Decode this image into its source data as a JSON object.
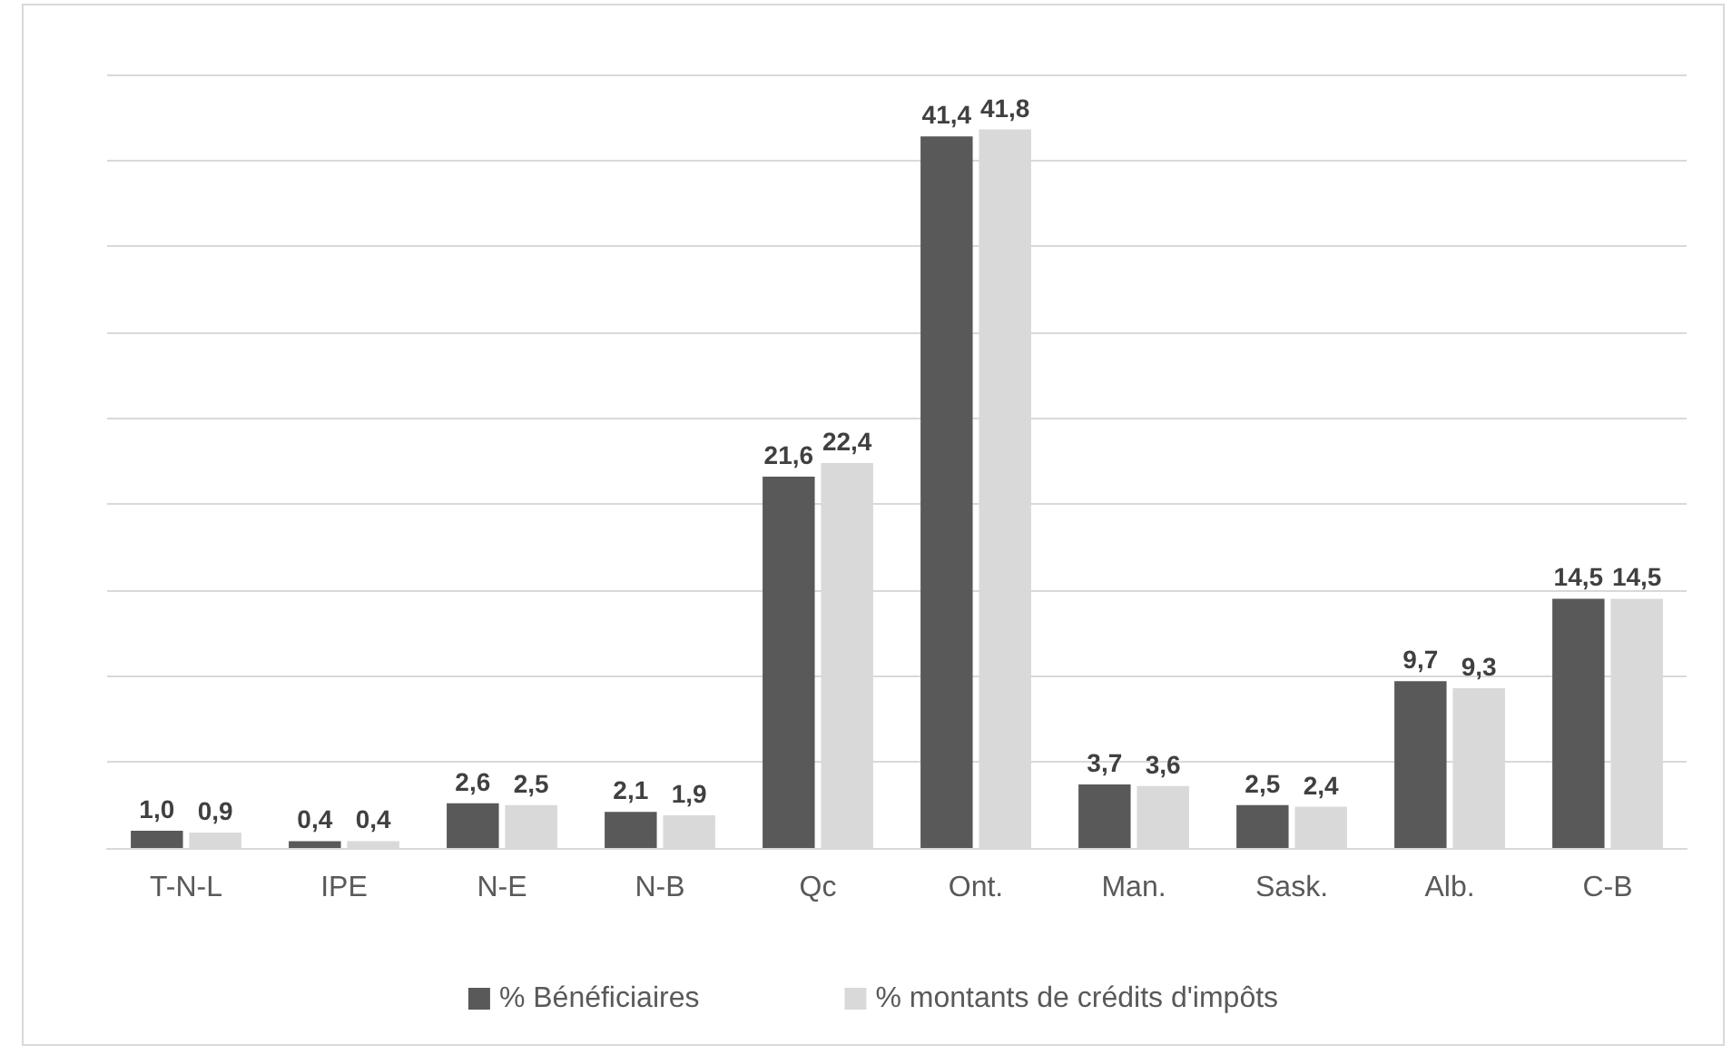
{
  "chart_data": {
    "type": "bar",
    "categories": [
      "T-N-L",
      "IPE",
      "N-E",
      "N-B",
      "Qc",
      "Ont.",
      "Man.",
      "Sask.",
      "Alb.",
      "C-B"
    ],
    "series": [
      {
        "name": "% Bénéficiaires",
        "color": "#595959",
        "values": [
          1.0,
          0.4,
          2.6,
          2.1,
          21.6,
          41.4,
          3.7,
          2.5,
          9.7,
          14.5
        ],
        "value_labels": [
          "1,0",
          "0,4",
          "2,6",
          "2,1",
          "21,6",
          "41,4",
          "3,7",
          "2,5",
          "9,7",
          "14,5"
        ]
      },
      {
        "name": "% montants de crédits d'impôts",
        "color": "#d9d9d9",
        "values": [
          0.9,
          0.4,
          2.5,
          1.9,
          22.4,
          41.8,
          3.6,
          2.4,
          9.3,
          14.5
        ],
        "value_labels": [
          "0,9",
          "0,4",
          "2,5",
          "1,9",
          "22,4",
          "41,8",
          "3,6",
          "2,4",
          "9,3",
          "14,5"
        ]
      }
    ],
    "ylim": [
      0,
      45
    ],
    "yticks": [
      {
        "value": 0,
        "label": null
      },
      {
        "value": 5,
        "label": null
      },
      {
        "value": 10,
        "label": null
      },
      {
        "value": 15,
        "label": null
      },
      {
        "value": 20,
        "label": null
      },
      {
        "value": 25,
        "label": null
      },
      {
        "value": 30,
        "label": null
      },
      {
        "value": 35,
        "label": null
      },
      {
        "value": 40,
        "label": null
      },
      {
        "value": 45,
        "label": null
      }
    ],
    "tick_labels": "x",
    "grid": "y",
    "legend": "bottom"
  }
}
